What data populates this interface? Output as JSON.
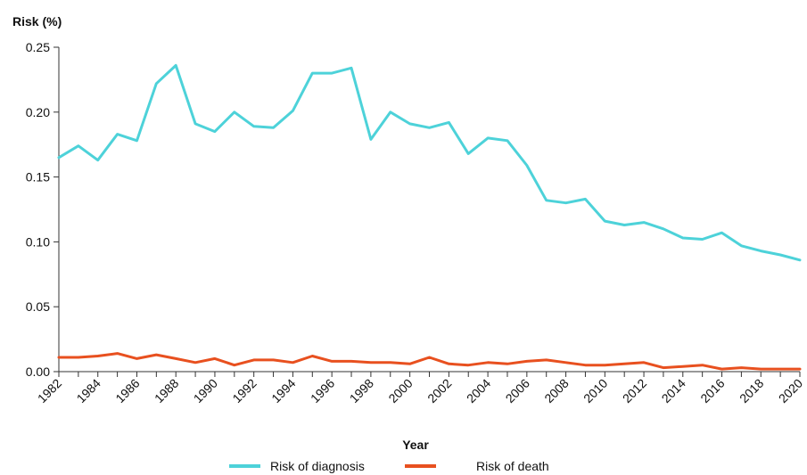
{
  "chart_data": {
    "type": "line",
    "ylabel": "Risk (%)",
    "xlabel": "Year",
    "ylim": [
      0,
      0.25
    ],
    "yticks": [
      "0.00",
      "0.05",
      "0.10",
      "0.15",
      "0.20",
      "0.25"
    ],
    "xticks": [
      "1982",
      "1984",
      "1986",
      "1988",
      "1990",
      "1992",
      "1994",
      "1996",
      "1998",
      "2000",
      "2002",
      "2004",
      "2006",
      "2008",
      "2010",
      "2012",
      "2014",
      "2016",
      "2018",
      "2020"
    ],
    "grid": false,
    "legend_position": "bottom",
    "x": [
      1982,
      1983,
      1984,
      1985,
      1986,
      1987,
      1988,
      1989,
      1990,
      1991,
      1992,
      1993,
      1994,
      1995,
      1996,
      1997,
      1998,
      1999,
      2000,
      2001,
      2002,
      2003,
      2004,
      2005,
      2006,
      2007,
      2008,
      2009,
      2010,
      2011,
      2012,
      2013,
      2014,
      2015,
      2016,
      2017,
      2018,
      2019,
      2020
    ],
    "series": [
      {
        "name": "Risk of diagnosis",
        "color": "#4dd2d9",
        "values": [
          0.165,
          0.174,
          0.163,
          0.183,
          0.178,
          0.222,
          0.236,
          0.191,
          0.185,
          0.2,
          0.189,
          0.188,
          0.201,
          0.23,
          0.23,
          0.234,
          0.179,
          0.2,
          0.191,
          0.188,
          0.192,
          0.168,
          0.18,
          0.178,
          0.159,
          0.132,
          0.13,
          0.133,
          0.116,
          0.113,
          0.115,
          0.11,
          0.103,
          0.102,
          0.107,
          0.097,
          0.093,
          0.09,
          0.086
        ]
      },
      {
        "name": "Risk of death",
        "color": "#e8501f",
        "values": [
          0.011,
          0.011,
          0.012,
          0.014,
          0.01,
          0.013,
          0.01,
          0.007,
          0.01,
          0.005,
          0.009,
          0.009,
          0.007,
          0.012,
          0.008,
          0.008,
          0.007,
          0.007,
          0.006,
          0.011,
          0.006,
          0.005,
          0.007,
          0.006,
          0.008,
          0.009,
          0.007,
          0.005,
          0.005,
          0.006,
          0.007,
          0.003,
          0.004,
          0.005,
          0.002,
          0.003,
          0.002,
          0.002,
          0.002
        ]
      }
    ]
  }
}
